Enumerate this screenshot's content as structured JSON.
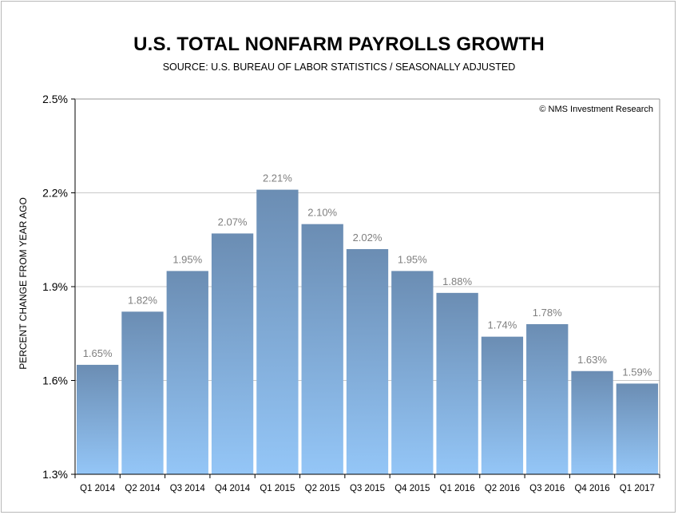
{
  "header": {
    "title": "U.S. TOTAL NONFARM PAYROLLS GROWTH",
    "subtitle": "SOURCE: U.S. BUREAU OF LABOR STATISTICS / SEASONALLY ADJUSTED"
  },
  "chart_data": {
    "type": "bar",
    "title": "U.S. TOTAL NONFARM PAYROLLS GROWTH",
    "subtitle": "SOURCE: U.S. BUREAU OF LABOR STATISTICS / SEASONALLY ADJUSTED",
    "xlabel": "",
    "ylabel": "PERCENT CHANGE FROM YEAR AGO",
    "watermark": "© NMS Investment Research",
    "categories": [
      "Q1 2014",
      "Q2 2014",
      "Q3 2014",
      "Q4 2014",
      "Q1 2015",
      "Q2 2015",
      "Q3 2015",
      "Q4 2015",
      "Q1 2016",
      "Q2 2016",
      "Q3 2016",
      "Q4 2016",
      "Q1 2017"
    ],
    "values": [
      1.65,
      1.82,
      1.95,
      2.07,
      2.21,
      2.1,
      2.02,
      1.95,
      1.88,
      1.74,
      1.78,
      1.63,
      1.59
    ],
    "data_labels": [
      "1.65%",
      "1.82%",
      "1.95%",
      "2.07%",
      "2.21%",
      "2.10%",
      "2.02%",
      "1.95%",
      "1.88%",
      "1.74%",
      "1.78%",
      "1.63%",
      "1.59%"
    ],
    "ylim": [
      1.3,
      2.5
    ],
    "yticks": [
      1.3,
      1.6,
      1.9,
      2.2,
      2.5
    ],
    "ytick_labels": [
      "1.3%",
      "1.6%",
      "1.9%",
      "2.2%",
      "2.5%"
    ],
    "grid": true,
    "colors": {
      "bar_top": "#6b8db3",
      "bar_bottom": "#94c6f7",
      "gridline": "#c8c8c8",
      "data_label": "#7f7f7f"
    }
  }
}
